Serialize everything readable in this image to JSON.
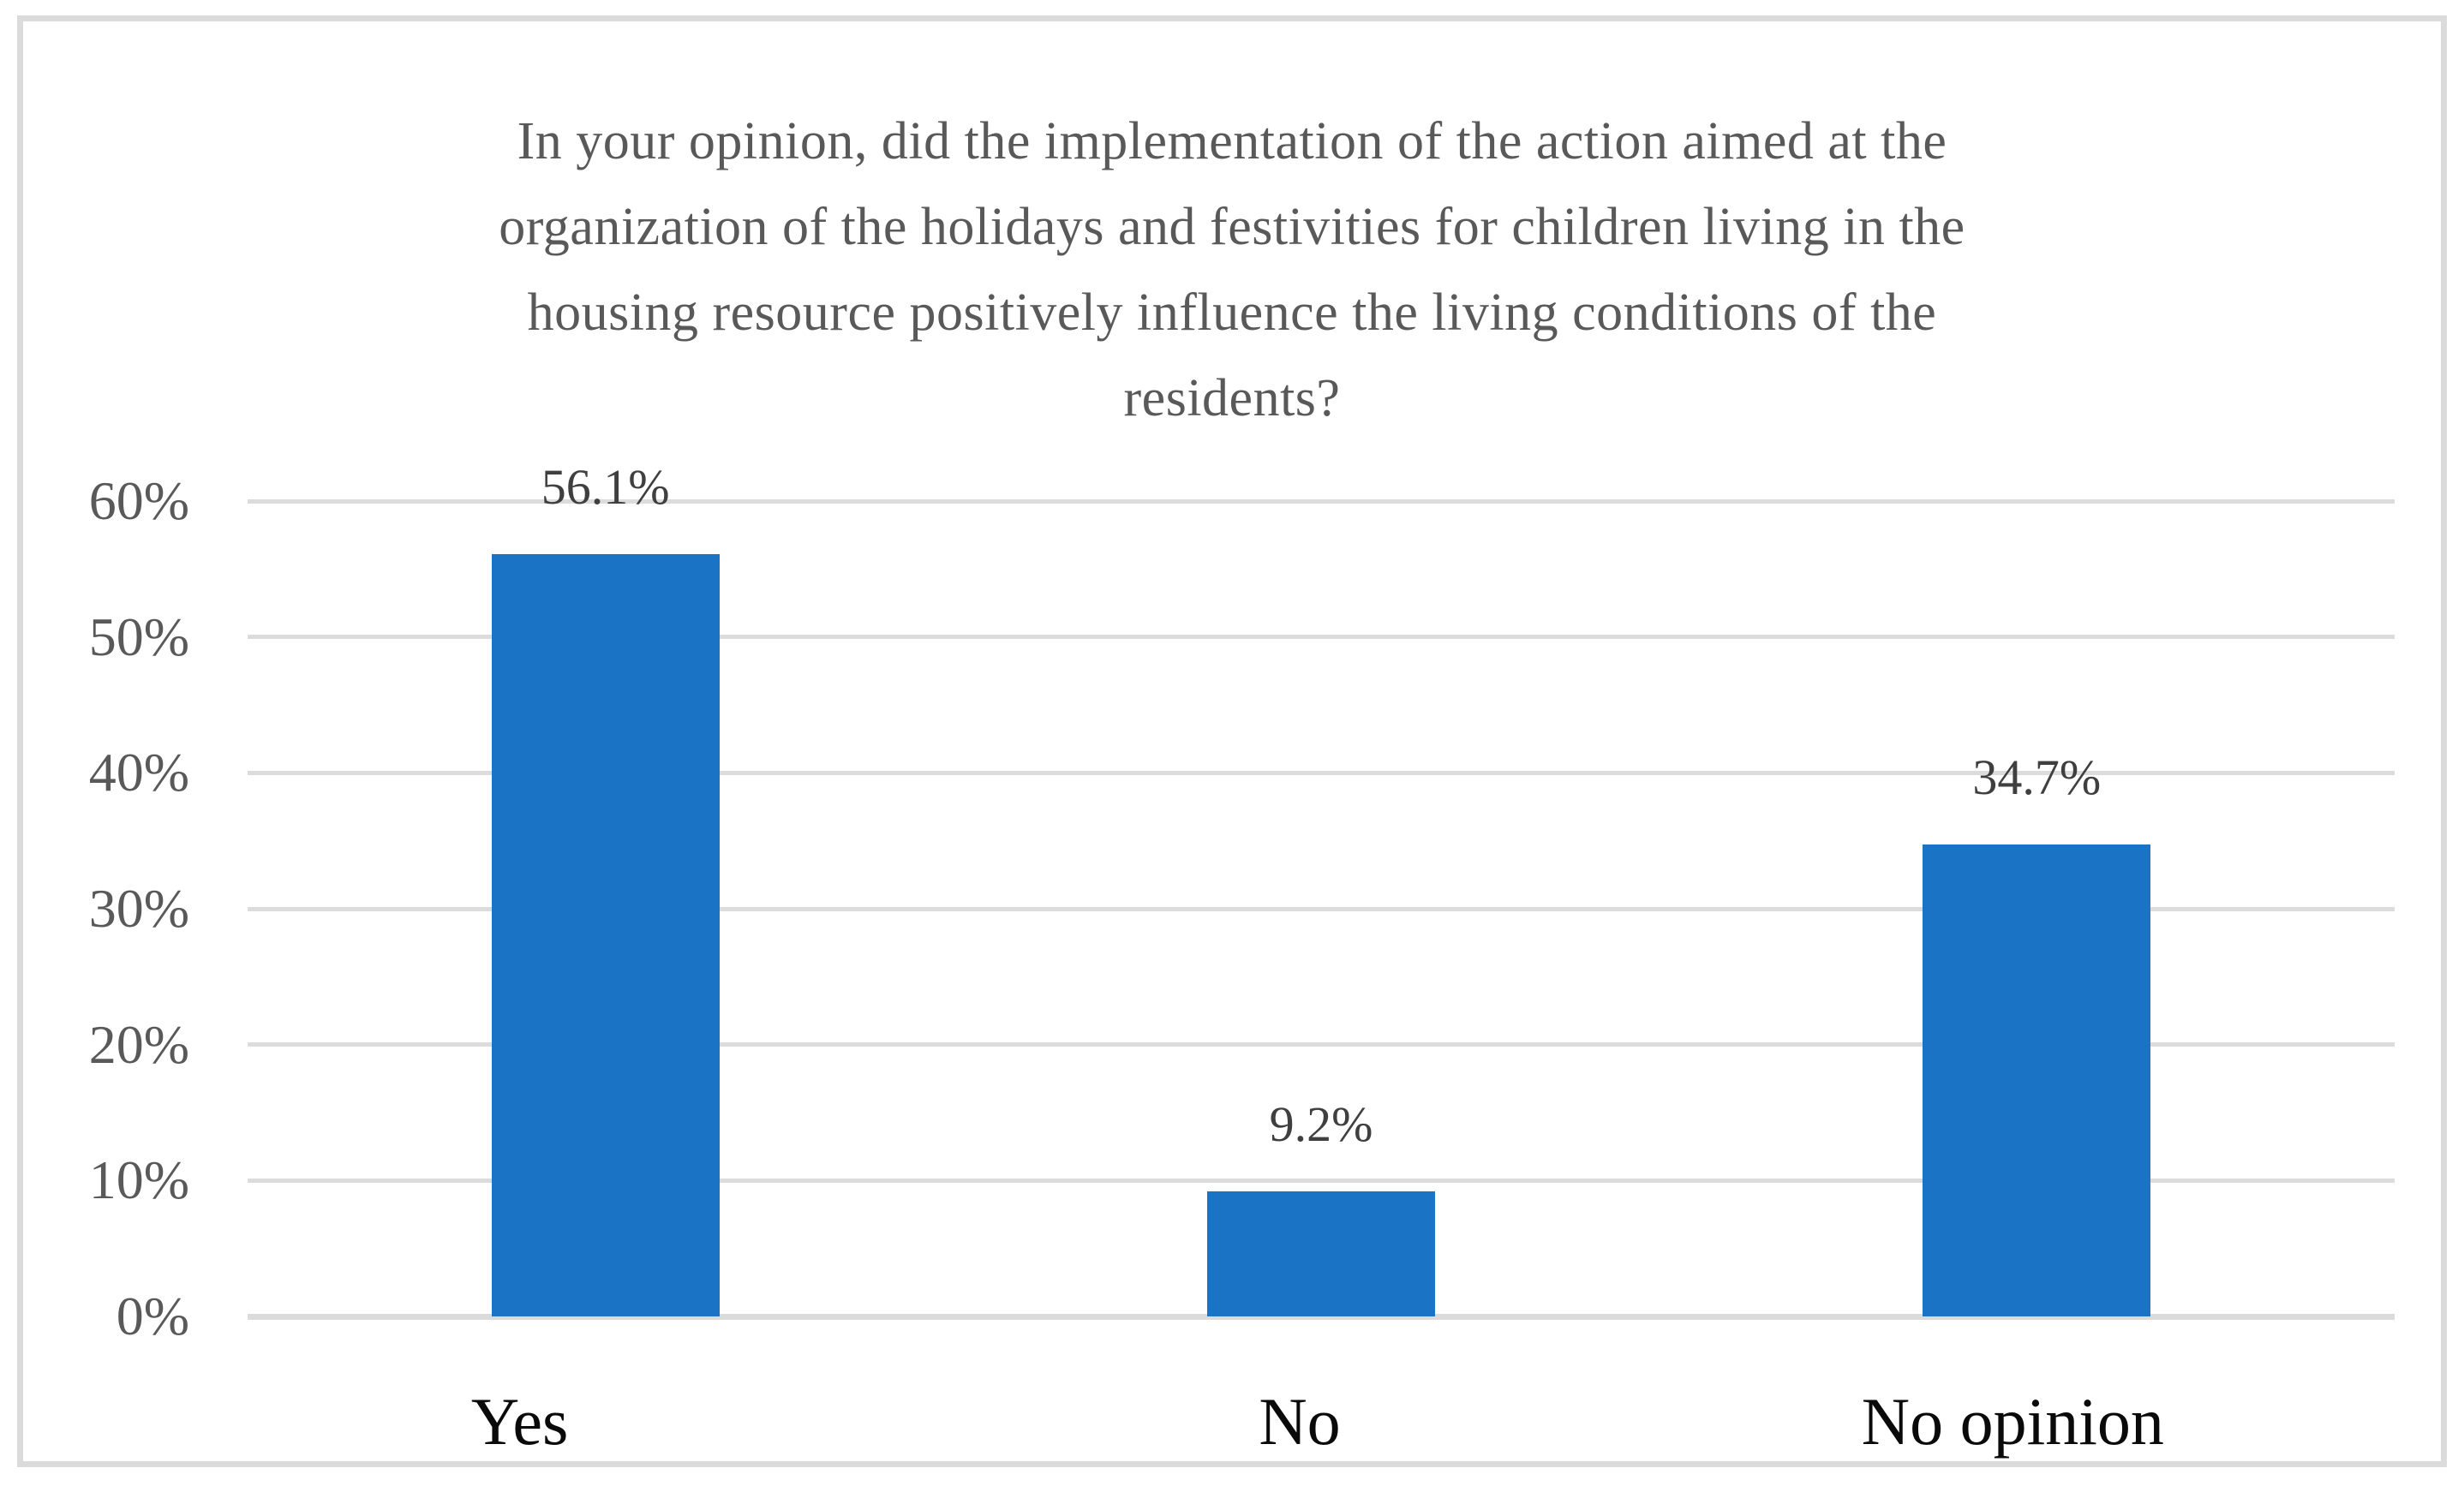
{
  "chart_data": {
    "type": "bar",
    "title": "In your opinion, did the implementation of the action aimed at the organization of the holidays and festivities for children living in the housing resource positively influence the living conditions of the residents?",
    "title_lines": [
      "In your opinion, did the implementation of the action aimed at the",
      "organization of the holidays and festivities for children living in the",
      "housing resource positively influence the living conditions of the",
      "residents?"
    ],
    "categories": [
      "Yes",
      "No",
      "No opinion"
    ],
    "values": [
      56.1,
      9.2,
      34.7
    ],
    "data_labels": [
      "56.1%",
      "9.2%",
      "34.7%"
    ],
    "xlabel": "",
    "ylabel": "",
    "y_axis": {
      "min": 0,
      "max": 60,
      "tick_step": 10,
      "tick_labels": [
        "0%",
        "10%",
        "20%",
        "30%",
        "40%",
        "50%",
        "60%"
      ]
    },
    "grid": true,
    "legend": false,
    "colors": {
      "bar": "#1B73C6",
      "gridline": "#DCDCDC",
      "baseline": "#DBDBDB",
      "y_tick_label": "#595959",
      "data_label": "#3F3F3F",
      "category_label": "#0A0A0A",
      "title": "#595959",
      "frame_border": "#DBDBDB",
      "background": "#FFFFFF"
    }
  }
}
